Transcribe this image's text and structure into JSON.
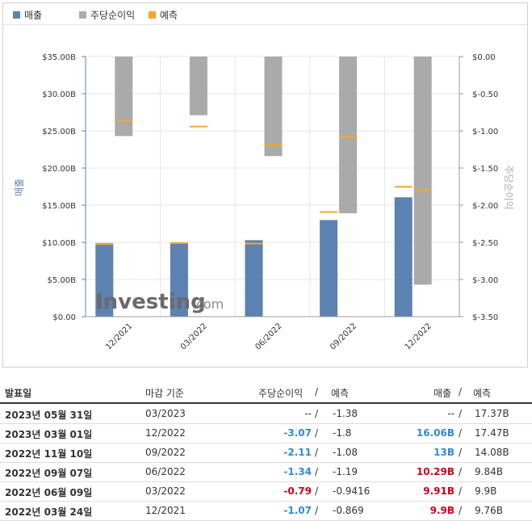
{
  "legend": [
    {
      "label": "매출",
      "color": "#5b82b0"
    },
    {
      "label": "주당순이익",
      "color": "#aaaaaa"
    },
    {
      "label": "예측",
      "color": "#f0a830"
    }
  ],
  "watermark": {
    "brand": "Investing",
    "suffix": ".com"
  },
  "chart_data": {
    "type": "bar",
    "categories": [
      "12/2021",
      "03/2022",
      "06/2022",
      "09/2022",
      "12/2022"
    ],
    "series": [
      {
        "name": "매출",
        "axis": "left",
        "values": [
          9.9,
          9.91,
          10.29,
          13.0,
          16.06
        ],
        "forecast": [
          9.76,
          9.9,
          9.84,
          14.08,
          17.47
        ],
        "color": "#5b82b0"
      },
      {
        "name": "주당순이익",
        "axis": "right",
        "values": [
          -1.07,
          -0.79,
          -1.34,
          -2.11,
          -3.07
        ],
        "forecast": [
          -0.869,
          -0.9416,
          -1.19,
          -1.08,
          -1.8
        ],
        "color": "#aaaaaa"
      }
    ],
    "forecast_color": "#f0a830",
    "y_left": {
      "label": "매출",
      "ticks": [
        "$35.00B",
        "$30.00B",
        "$25.00B",
        "$20.00B",
        "$15.00B",
        "$10.00B",
        "$5.00B",
        "$0.00"
      ],
      "ylim": [
        0,
        35
      ]
    },
    "y_right": {
      "label": "주당순이익",
      "ticks": [
        "$0.00",
        "$-0.50",
        "$-1.00",
        "$-1.50",
        "$-2.00",
        "$-2.50",
        "$-3.00",
        "$-3.50"
      ],
      "ylim": [
        -3.5,
        0
      ]
    },
    "grid": true
  },
  "table": {
    "headers": {
      "date": "발표일",
      "period": "마감 기준",
      "eps": "주당순이익",
      "eps_sep": "/",
      "eps_fc": "예측",
      "rev": "매출",
      "rev_sep": "/",
      "rev_fc": "예측"
    },
    "rows": [
      {
        "date": "2023년 05월 31일",
        "period": "03/2023",
        "eps": "--",
        "eps_sep": "/",
        "eps_fc": "-1.38",
        "rev": "--",
        "rev_sep": "/",
        "rev_fc": "17.37B",
        "eps_cls": "",
        "rev_cls": ""
      },
      {
        "date": "2023년 03월 01일",
        "period": "12/2022",
        "eps": "-3.07",
        "eps_sep": "/",
        "eps_fc": "-1.8",
        "rev": "16.06B",
        "rev_sep": "/",
        "rev_fc": "17.47B",
        "eps_cls": "neg-blue",
        "rev_cls": "rev-blue"
      },
      {
        "date": "2022년 11월 10일",
        "period": "09/2022",
        "eps": "-2.11",
        "eps_sep": "/",
        "eps_fc": "-1.08",
        "rev": "13B",
        "rev_sep": "/",
        "rev_fc": "14.08B",
        "eps_cls": "neg-blue",
        "rev_cls": "rev-blue"
      },
      {
        "date": "2022년 09월 07일",
        "period": "06/2022",
        "eps": "-1.34",
        "eps_sep": "/",
        "eps_fc": "-1.19",
        "rev": "10.29B",
        "rev_sep": "/",
        "rev_fc": "9.84B",
        "eps_cls": "neg-blue",
        "rev_cls": "rev-red"
      },
      {
        "date": "2022년 06월 09일",
        "period": "03/2022",
        "eps": "-0.79",
        "eps_sep": "/",
        "eps_fc": "-0.9416",
        "rev": "9.91B",
        "rev_sep": "/",
        "rev_fc": "9.9B",
        "eps_cls": "neg-red",
        "rev_cls": "rev-red"
      },
      {
        "date": "2022년 03월 24일",
        "period": "12/2021",
        "eps": "-1.07",
        "eps_sep": "/",
        "eps_fc": "-0.869",
        "rev": "9.9B",
        "rev_sep": "/",
        "rev_fc": "9.76B",
        "eps_cls": "neg-blue",
        "rev_cls": "rev-red"
      }
    ]
  }
}
